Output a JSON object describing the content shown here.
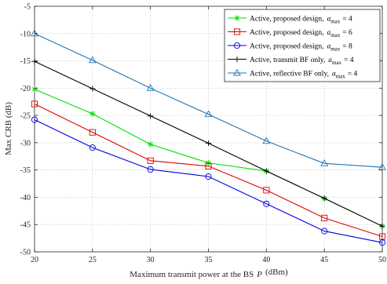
{
  "chart_data": {
    "type": "line",
    "xlabel": "Maximum transmit power at the BS",
    "xlabel_symbol": "P",
    "xlabel_symbol_sub": "t",
    "xlabel_unit": "(dBm)",
    "ylabel": "Max CRB (dB)",
    "x": [
      20,
      25,
      30,
      35,
      40,
      45,
      50
    ],
    "xlim": [
      20,
      50
    ],
    "ylim": [
      -50,
      -5
    ],
    "xticks": [
      "20",
      "25",
      "30",
      "35",
      "40",
      "45",
      "50"
    ],
    "yticks": [
      "-5",
      "-10",
      "-15",
      "-20",
      "-25",
      "-30",
      "-35",
      "-40",
      "-45",
      "-50"
    ],
    "grid": true,
    "legend_position": "top-right",
    "series": [
      {
        "name": "Active, proposed design,",
        "param": "a",
        "param_sub": "max",
        "param_value": "= 4",
        "color": "#00e000",
        "marker": "asterisk",
        "values": [
          -20.2,
          -24.7,
          -30.3,
          -33.7,
          -35.2,
          -40.2,
          -45.3
        ]
      },
      {
        "name": "Active, proposed design,",
        "param": "a",
        "param_sub": "max",
        "param_value": "= 6",
        "color": "#e00000",
        "marker": "square",
        "values": [
          -22.9,
          -28.1,
          -33.3,
          -34.3,
          -38.7,
          -43.8,
          -47.2
        ]
      },
      {
        "name": "Active, proposed design,",
        "param": "a",
        "param_sub": "max",
        "param_value": "= 8",
        "color": "#0000e0",
        "marker": "circle",
        "values": [
          -25.8,
          -30.9,
          -34.9,
          -36.2,
          -41.2,
          -46.2,
          -48.3
        ]
      },
      {
        "name": "Active, transmit BF only,",
        "param": "a",
        "param_sub": "max",
        "param_value": "= 4",
        "color": "#000000",
        "marker": "plus",
        "values": [
          -15.1,
          -20.1,
          -25.1,
          -30.1,
          -35.2,
          -40.2,
          -45.3
        ]
      },
      {
        "name": "Active, reflective BF only,",
        "param": "a",
        "param_sub": "max",
        "param_value": "= 4",
        "color": "#1f77b4",
        "marker": "triangle",
        "values": [
          -10.0,
          -14.9,
          -20.0,
          -24.8,
          -29.7,
          -33.8,
          -34.5
        ]
      }
    ]
  }
}
